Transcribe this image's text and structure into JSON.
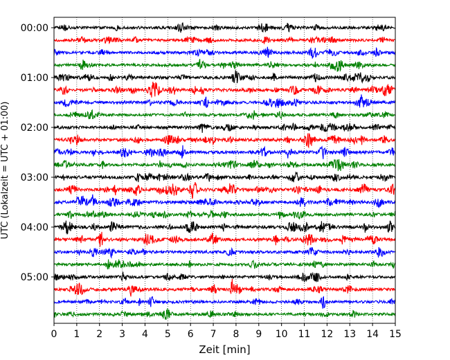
{
  "chart_data": {
    "type": "line",
    "subtype": "helicorder-seismogram",
    "xlabel": "Zeit  [min]",
    "ylabel": "UTC (Lokalzeit = UTC + 01:00)",
    "xlim": [
      0,
      15
    ],
    "x_ticks": [
      0,
      1,
      2,
      3,
      4,
      5,
      6,
      7,
      8,
      9,
      10,
      11,
      12,
      13,
      14,
      15
    ],
    "y_tick_labels": [
      "00:00",
      "01:00",
      "02:00",
      "03:00",
      "04:00",
      "05:00"
    ],
    "y_tick_rows": [
      0,
      4,
      8,
      12,
      16,
      20
    ],
    "grid": "vertical dotted at each minute",
    "color_cycle": [
      "#000000",
      "#ff0000",
      "#0000ff",
      "#008000"
    ],
    "trace_interval_min": 15,
    "trace_count": 24,
    "trace_start_times": [
      "00:00",
      "00:15",
      "00:30",
      "00:45",
      "01:00",
      "01:15",
      "01:30",
      "01:45",
      "02:00",
      "02:15",
      "02:30",
      "02:45",
      "03:00",
      "03:15",
      "03:30",
      "03:45",
      "04:00",
      "04:15",
      "04:30",
      "04:45",
      "05:00",
      "05:15",
      "05:30",
      "05:45"
    ],
    "trace_activity": [
      0.5,
      0.5,
      0.6,
      0.6,
      0.8,
      0.9,
      0.7,
      0.4,
      0.7,
      0.8,
      0.9,
      0.7,
      0.8,
      1.0,
      0.9,
      0.8,
      1.0,
      1.0,
      0.6,
      0.6,
      0.6,
      0.8,
      0.5,
      0.5
    ]
  }
}
